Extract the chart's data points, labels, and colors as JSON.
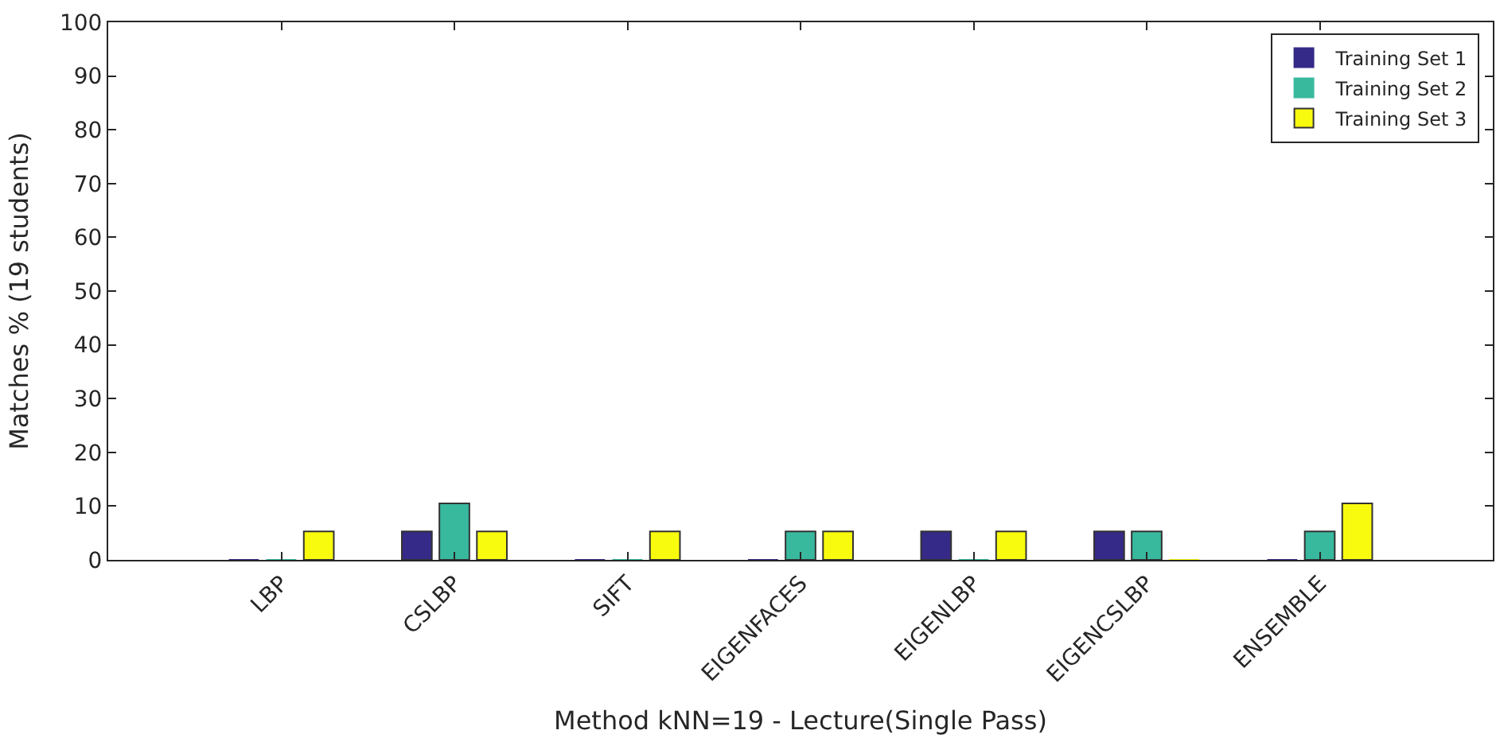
{
  "chart_data": {
    "type": "bar",
    "xlabel": "Method kNN=19 - Lecture(Single Pass)",
    "ylabel": "Matches % (19 students)",
    "categories": [
      "LBP",
      "CSLBP",
      "SIFT",
      "EIGENFACES",
      "EIGENLBP",
      "EIGENCSLBP",
      "ENSEMBLE"
    ],
    "series": [
      {
        "name": "Training Set 1",
        "color": "#352a87",
        "values": [
          0,
          5.3,
          0,
          0,
          5.3,
          5.3,
          0
        ]
      },
      {
        "name": "Training Set 2",
        "color": "#38b99e",
        "values": [
          0,
          10.5,
          0,
          5.3,
          0,
          5.3,
          5.3
        ]
      },
      {
        "name": "Training Set 3",
        "color": "#f9fb0e",
        "values": [
          5.3,
          5.3,
          5.3,
          5.3,
          5.3,
          0,
          10.5
        ]
      }
    ],
    "ylim": [
      0,
      100
    ],
    "yticks": [
      0,
      10,
      20,
      30,
      40,
      50,
      60,
      70,
      80,
      90,
      100
    ],
    "legend": "top right"
  }
}
